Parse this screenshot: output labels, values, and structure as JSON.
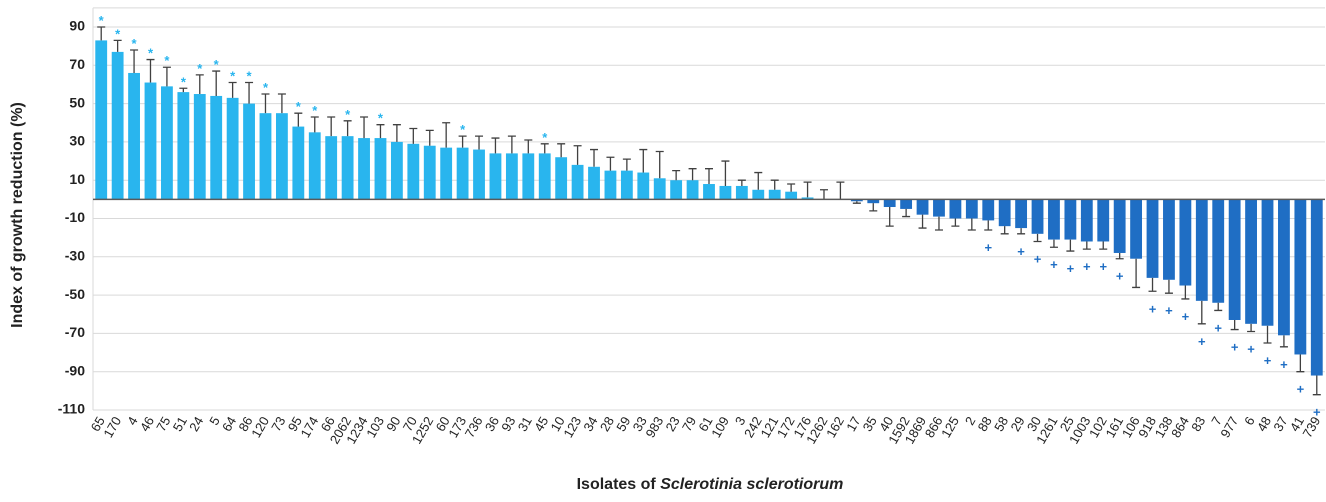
{
  "chart_data": {
    "type": "bar",
    "ylabel": "Index of  growth reduction (%)",
    "xlabel": [
      "Isolates of",
      "Sclerotinia sclerotiorum"
    ],
    "categories": [
      "65",
      "170",
      "4",
      "46",
      "75",
      "51",
      "24",
      "5",
      "64",
      "86",
      "120",
      "73",
      "95",
      "174",
      "66",
      "2062",
      "1234",
      "103",
      "90",
      "70",
      "1252",
      "60",
      "173",
      "736",
      "36",
      "93",
      "31",
      "45",
      "10",
      "123",
      "34",
      "28",
      "59",
      "33",
      "983",
      "23",
      "79",
      "61",
      "109",
      "3",
      "242",
      "121",
      "172",
      "176",
      "1262",
      "162",
      "17",
      "35",
      "40",
      "1592",
      "1869",
      "866",
      "125",
      "2",
      "88",
      "58",
      "29",
      "30",
      "1261",
      "25",
      "1003",
      "102",
      "161",
      "106",
      "918",
      "138",
      "864",
      "83",
      "7",
      "977",
      "6",
      "48",
      "37",
      "41",
      "739"
    ],
    "values": [
      83,
      77,
      66,
      61,
      59,
      56,
      55,
      54,
      53,
      50,
      45,
      45,
      38,
      35,
      33,
      33,
      32,
      32,
      30,
      29,
      28,
      27,
      27,
      26,
      24,
      24,
      24,
      24,
      22,
      18,
      17,
      15,
      15,
      14,
      11,
      10,
      10,
      8,
      7,
      7,
      5,
      5,
      4,
      1,
      0,
      0,
      -1,
      -2,
      -4,
      -5,
      -8,
      -9,
      -10,
      -10,
      -11,
      -14,
      -15,
      -18,
      -21,
      -21,
      -22,
      -22,
      -28,
      -31,
      -41,
      -42,
      -45,
      -53,
      -54,
      -63,
      -65,
      -66,
      -71,
      -81,
      -92
    ],
    "errors": [
      7,
      6,
      12,
      12,
      10,
      2,
      10,
      13,
      8,
      11,
      10,
      10,
      7,
      8,
      10,
      8,
      11,
      7,
      9,
      8,
      8,
      13,
      6,
      7,
      8,
      9,
      7,
      5,
      7,
      10,
      9,
      7,
      6,
      12,
      14,
      5,
      6,
      8,
      13,
      3,
      9,
      5,
      4,
      8,
      5,
      9,
      1,
      4,
      10,
      4,
      7,
      7,
      4,
      6,
      5,
      4,
      3,
      4,
      4,
      6,
      4,
      4,
      3,
      15,
      7,
      7,
      7,
      12,
      4,
      5,
      4,
      9,
      6,
      9,
      10
    ],
    "markers": [
      "*",
      "*",
      "*",
      "*",
      "*",
      "*",
      "*",
      "*",
      "*",
      "*",
      "*",
      null,
      "*",
      "*",
      null,
      "*",
      null,
      "*",
      null,
      null,
      null,
      null,
      "*",
      null,
      null,
      null,
      null,
      "*",
      null,
      null,
      null,
      null,
      null,
      null,
      null,
      null,
      null,
      null,
      null,
      null,
      null,
      null,
      null,
      null,
      null,
      null,
      null,
      null,
      null,
      null,
      null,
      null,
      null,
      null,
      "+",
      null,
      "+",
      "+",
      "+",
      "+",
      "+",
      "+",
      "+",
      null,
      "+",
      "+",
      "+",
      "+",
      "+",
      "+",
      "+",
      "+",
      "+",
      "+",
      "+"
    ],
    "color_positive": "#29b5ee",
    "color_negative": "#1f6ec4",
    "error_color": "#404040",
    "ylim": [
      -110,
      100
    ],
    "yticks": [
      -110,
      -90,
      -70,
      -50,
      -30,
      -10,
      10,
      30,
      50,
      70,
      90
    ],
    "grid": true
  }
}
